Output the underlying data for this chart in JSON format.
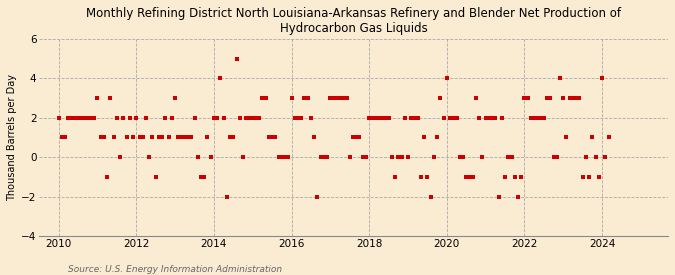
{
  "title": "Monthly Refining District North Louisiana-Arkansas Refinery and Blender Net Production of\nHydrocarbon Gas Liquids",
  "ylabel": "Thousand Barrels per Day",
  "source": "Source: U.S. Energy Information Administration",
  "background_color": "#faecd2",
  "marker_color": "#cc0000",
  "ylim": [
    -4,
    6
  ],
  "yticks": [
    -4,
    -2,
    0,
    2,
    4,
    6
  ],
  "xlim": [
    2009.5,
    2025.7
  ],
  "xticks": [
    2010,
    2012,
    2014,
    2016,
    2018,
    2020,
    2022,
    2024
  ],
  "values": [
    2.0,
    1.0,
    1.0,
    2.0,
    2.0,
    2.0,
    2.0,
    2.0,
    2.0,
    2.0,
    2.0,
    2.0,
    3.0,
    1.0,
    1.0,
    -1.0,
    3.0,
    1.0,
    2.0,
    0.0,
    2.0,
    1.0,
    2.0,
    1.0,
    2.0,
    1.0,
    1.0,
    2.0,
    0.0,
    1.0,
    -1.0,
    1.0,
    1.0,
    2.0,
    1.0,
    2.0,
    3.0,
    1.0,
    1.0,
    1.0,
    1.0,
    1.0,
    2.0,
    0.0,
    -1.0,
    -1.0,
    1.0,
    0.0,
    2.0,
    2.0,
    4.0,
    2.0,
    -2.0,
    1.0,
    1.0,
    5.0,
    2.0,
    0.0,
    2.0,
    2.0,
    2.0,
    2.0,
    2.0,
    3.0,
    3.0,
    1.0,
    1.0,
    1.0,
    0.0,
    0.0,
    0.0,
    0.0,
    3.0,
    2.0,
    2.0,
    2.0,
    3.0,
    3.0,
    2.0,
    1.0,
    -2.0,
    0.0,
    0.0,
    0.0,
    3.0,
    3.0,
    3.0,
    3.0,
    3.0,
    3.0,
    0.0,
    1.0,
    1.0,
    1.0,
    0.0,
    0.0,
    2.0,
    2.0,
    2.0,
    2.0,
    2.0,
    2.0,
    2.0,
    0.0,
    -1.0,
    0.0,
    0.0,
    2.0,
    0.0,
    2.0,
    2.0,
    2.0,
    -1.0,
    1.0,
    -1.0,
    -2.0,
    0.0,
    1.0,
    3.0,
    2.0,
    4.0,
    2.0,
    2.0,
    2.0,
    0.0,
    0.0,
    -1.0,
    -1.0,
    -1.0,
    3.0,
    2.0,
    0.0,
    2.0,
    2.0,
    2.0,
    2.0,
    -2.0,
    2.0,
    -1.0,
    0.0,
    0.0,
    -1.0,
    -2.0,
    -1.0,
    3.0,
    3.0,
    2.0,
    2.0,
    2.0,
    2.0,
    2.0,
    3.0,
    3.0,
    0.0,
    0.0,
    4.0,
    3.0,
    1.0,
    3.0,
    3.0,
    3.0,
    3.0,
    -1.0,
    0.0,
    -1.0,
    1.0,
    0.0,
    -1.0,
    4.0,
    0.0,
    1.0
  ],
  "start_year": 2010,
  "start_month": 1
}
